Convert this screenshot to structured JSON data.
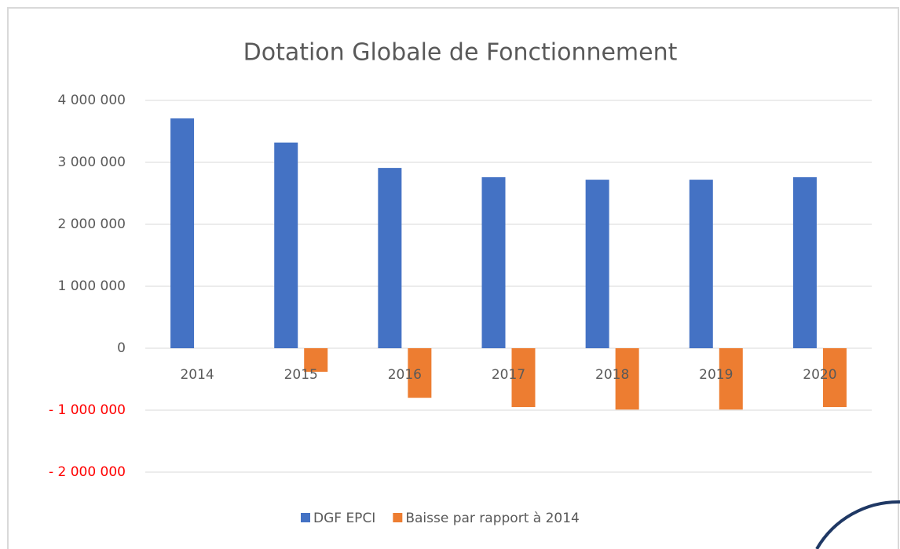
{
  "chart_data": {
    "type": "bar",
    "title": "Dotation Globale de Fonctionnement",
    "categories": [
      "2014",
      "2015",
      "2016",
      "2017",
      "2018",
      "2019",
      "2020"
    ],
    "series": [
      {
        "name": "DGF EPCI",
        "color": "#4472c4",
        "values": [
          3710000,
          3320000,
          2910000,
          2760000,
          2720000,
          2720000,
          2760000
        ]
      },
      {
        "name": "Baisse par rapport à 2014",
        "color": "#ed7d31",
        "values": [
          0,
          -380000,
          -800000,
          -950000,
          -990000,
          -990000,
          -950000
        ]
      }
    ],
    "ylim": [
      -2000000,
      4000000
    ],
    "yticks": [
      {
        "value": -2000000,
        "label": "- 2 000 000"
      },
      {
        "value": -1000000,
        "label": "- 1 000 000"
      },
      0,
      {
        "value": 1000000,
        "label": "1 000 000"
      },
      {
        "value": 2000000,
        "label": "2 000 000"
      },
      {
        "value": 3000000,
        "label": "3 000 000"
      },
      {
        "value": 4000000,
        "label": "4 000 000"
      }
    ],
    "negative_tick_color": "#ff0000",
    "grid": true,
    "legend": "bottom"
  }
}
